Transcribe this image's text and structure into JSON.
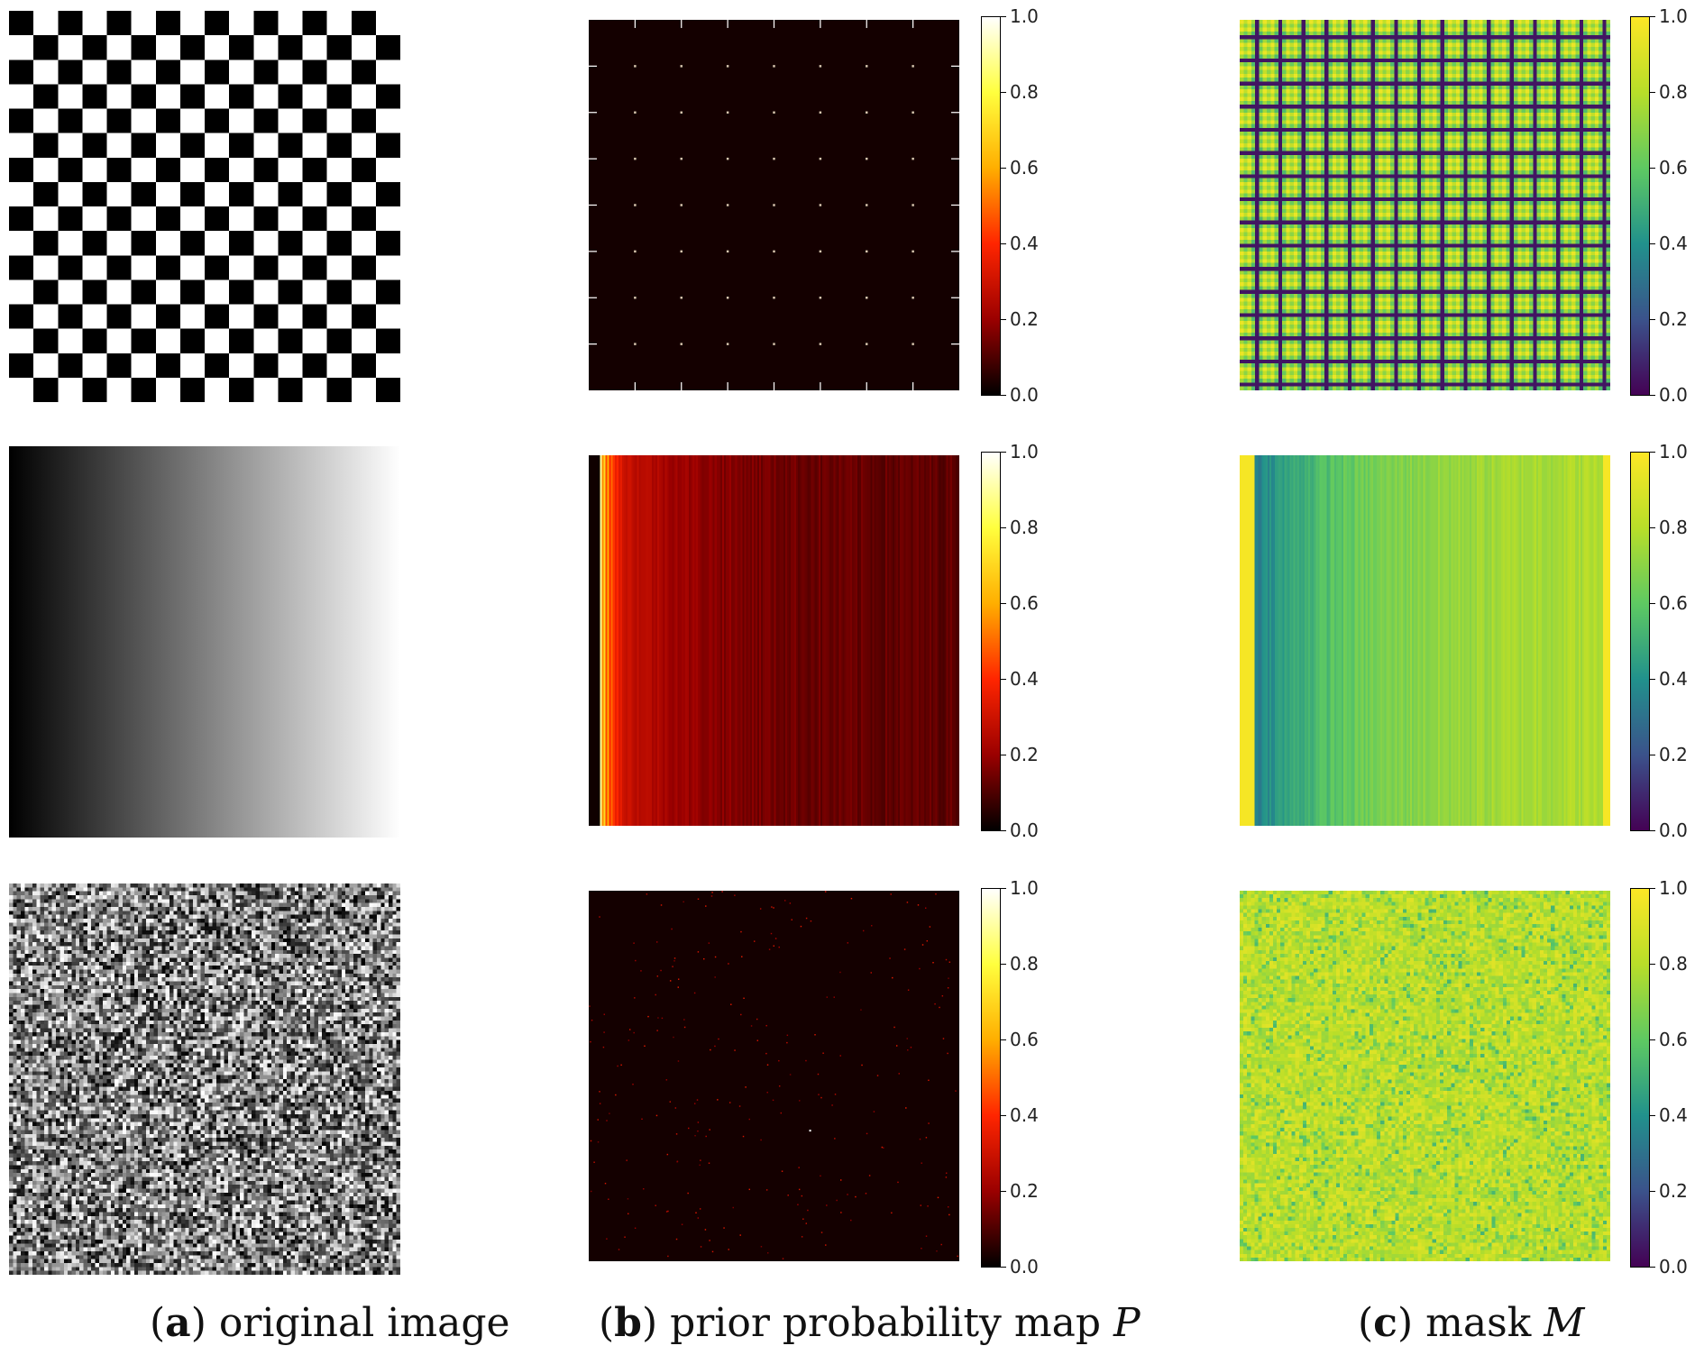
{
  "colorbar_ticks": [
    "1.0",
    "0.8",
    "0.6",
    "0.4",
    "0.2",
    "0.0"
  ],
  "colormaps": {
    "hot": [
      "#000000",
      "#9a0000",
      "#ff2500",
      "#ffae00",
      "#ffff3e",
      "#ffffff"
    ],
    "viridis": [
      "#440154",
      "#3b528b",
      "#21918c",
      "#5ec962",
      "#b8de29",
      "#fde725"
    ]
  },
  "captions": {
    "a": {
      "letter": "a",
      "text": "original image"
    },
    "b": {
      "letter": "b",
      "text": "prior probability map",
      "symbol": "P"
    },
    "c": {
      "letter": "c",
      "text": "mask",
      "symbol": "M"
    }
  },
  "rows": [
    {
      "original": "checkerboard",
      "prior_cmap": "hot",
      "mask_cmap": "viridis"
    },
    {
      "original": "horizontal gradient",
      "prior_cmap": "hot",
      "mask_cmap": "viridis"
    },
    {
      "original": "random noise",
      "prior_cmap": "hot",
      "mask_cmap": "viridis"
    }
  ]
}
